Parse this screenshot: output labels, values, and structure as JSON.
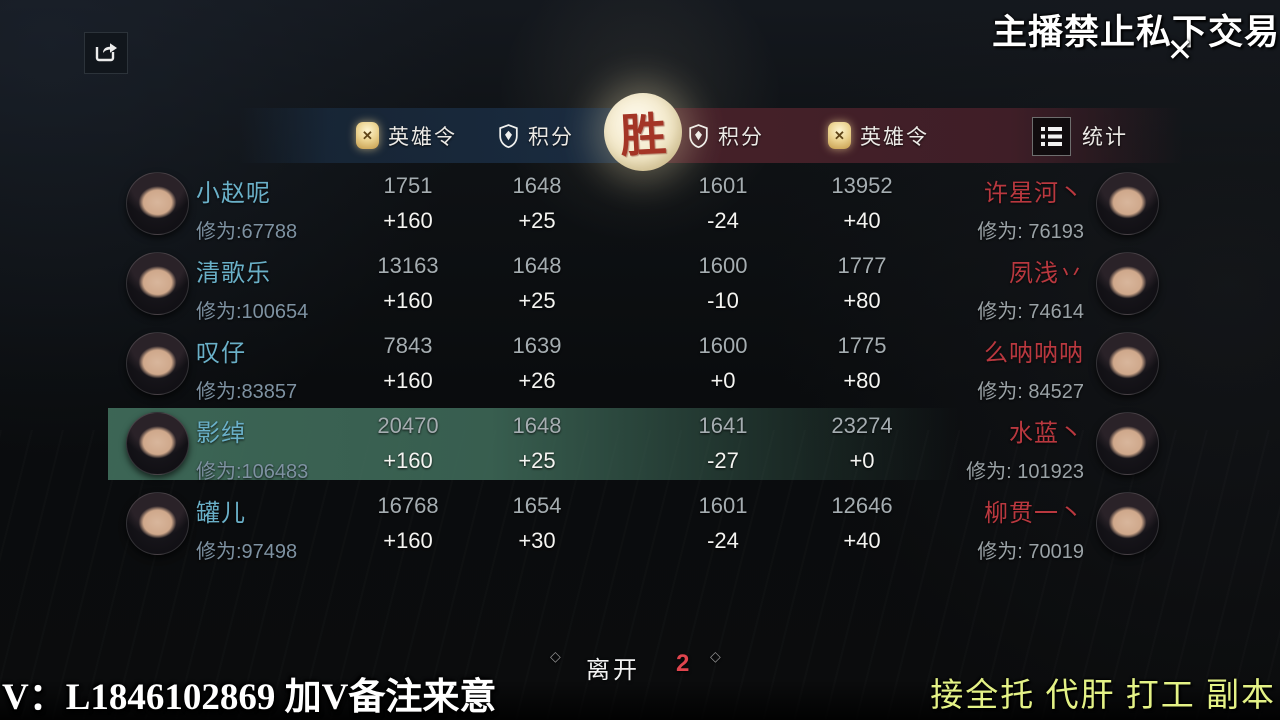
{
  "overlay": {
    "top_watermark": "主播禁止私下交易",
    "bottom_left_watermark": "V：L1846102869 加V备注来意",
    "bottom_right_ad": "接全托 代肝 打工 副本"
  },
  "header": {
    "left_hero_label": "英雄令",
    "left_score_label": "积分",
    "result_badge": "胜",
    "right_score_label": "积分",
    "right_hero_label": "英雄令",
    "stats_button": "统计"
  },
  "footer": {
    "leave_button": "离开",
    "countdown": "2",
    "diamond_glyph": "◇"
  },
  "icons": {
    "share": "share-icon",
    "close": "✕",
    "gold_badge_glyph": "✕"
  },
  "colors": {
    "name_blue": "#6ab0c8",
    "name_red": "#b9383f",
    "value_gray": "#a5adb1",
    "delta_white": "#f4f4f1",
    "highlight_green": "#3e6958",
    "band_blue": "#1a2c41",
    "band_red": "#462129",
    "moon_cream": "#f2e7c6",
    "win_red": "#a43526",
    "countdown_red": "#e0454e",
    "ad_yellow": "#e4f286"
  },
  "rows": [
    {
      "highlighted": false,
      "left": {
        "name": "小赵呢",
        "cultivation": "修为:67788"
      },
      "cols": [
        {
          "value": "1751",
          "delta": "+160"
        },
        {
          "value": "1648",
          "delta": "+25"
        },
        {
          "value": "1601",
          "delta": "-24"
        },
        {
          "value": "13952",
          "delta": "+40"
        }
      ],
      "right": {
        "name": "许星河丶",
        "cultivation": "修为: 76193"
      }
    },
    {
      "highlighted": false,
      "left": {
        "name": "清歌乐",
        "cultivation": "修为:100654"
      },
      "cols": [
        {
          "value": "13163",
          "delta": "+160"
        },
        {
          "value": "1648",
          "delta": "+25"
        },
        {
          "value": "1600",
          "delta": "-10"
        },
        {
          "value": "1777",
          "delta": "+80"
        }
      ],
      "right": {
        "name": "夙浅丷",
        "cultivation": "修为: 74614"
      }
    },
    {
      "highlighted": false,
      "left": {
        "name": "叹仔",
        "cultivation": "修为:83857"
      },
      "cols": [
        {
          "value": "7843",
          "delta": "+160"
        },
        {
          "value": "1639",
          "delta": "+26"
        },
        {
          "value": "1600",
          "delta": "+0"
        },
        {
          "value": "1775",
          "delta": "+80"
        }
      ],
      "right": {
        "name": "么呐呐呐",
        "cultivation": "修为: 84527"
      }
    },
    {
      "highlighted": true,
      "left": {
        "name": "影绰",
        "cultivation": "修为:106483"
      },
      "cols": [
        {
          "value": "20470",
          "delta": "+160"
        },
        {
          "value": "1648",
          "delta": "+25"
        },
        {
          "value": "1641",
          "delta": "-27"
        },
        {
          "value": "23274",
          "delta": "+0"
        }
      ],
      "right": {
        "name": "水蓝丶",
        "cultivation": "修为: 101923"
      }
    },
    {
      "highlighted": false,
      "left": {
        "name": "罐儿",
        "cultivation": "修为:97498"
      },
      "cols": [
        {
          "value": "16768",
          "delta": "+160"
        },
        {
          "value": "1654",
          "delta": "+30"
        },
        {
          "value": "1601",
          "delta": "-24"
        },
        {
          "value": "12646",
          "delta": "+40"
        }
      ],
      "right": {
        "name": "柳贯一丶",
        "cultivation": "修为: 70019"
      }
    }
  ]
}
